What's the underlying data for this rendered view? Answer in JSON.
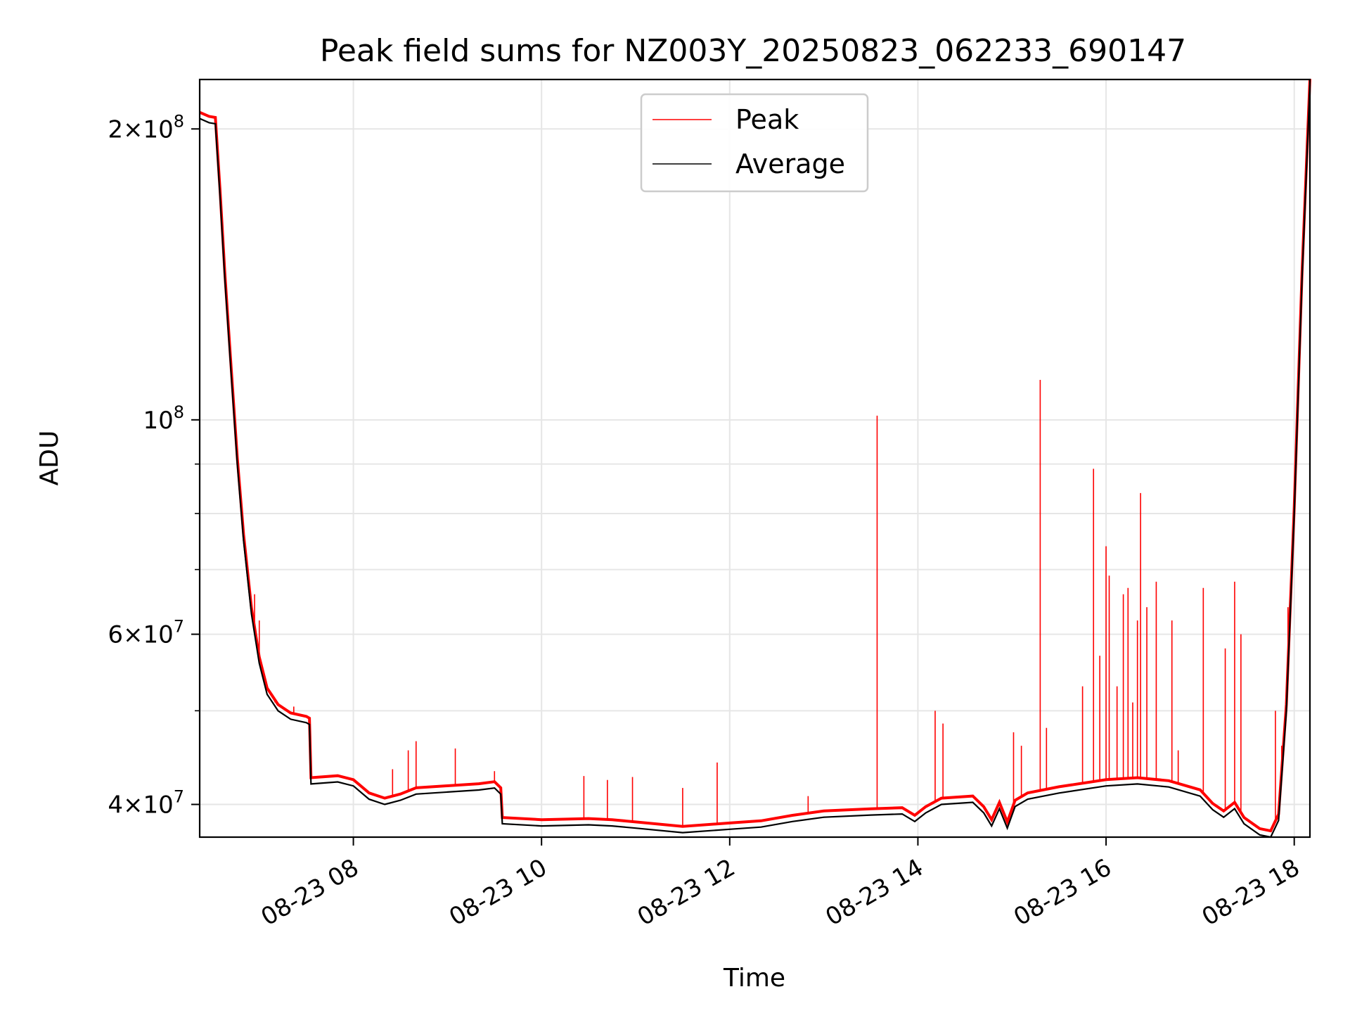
{
  "chart_data": {
    "type": "line",
    "title": "Peak field sums for NZ003Y_20250823_062233_690147",
    "xlabel": "Time",
    "ylabel": "ADU",
    "yscale": "log",
    "grid": true,
    "legend_placement": "top-center",
    "x_range": [
      "2025-08-23 06:22",
      "2025-08-23 18:10"
    ],
    "ylim": [
      37000000,
      225000000
    ],
    "x_ticks": [
      {
        "value": "2025-08-23 08:00",
        "label": "08-23 08"
      },
      {
        "value": "2025-08-23 10:00",
        "label": "08-23 10"
      },
      {
        "value": "2025-08-23 12:00",
        "label": "08-23 12"
      },
      {
        "value": "2025-08-23 14:00",
        "label": "08-23 14"
      },
      {
        "value": "2025-08-23 16:00",
        "label": "08-23 16"
      },
      {
        "value": "2025-08-23 18:00",
        "label": "08-23 18"
      }
    ],
    "y_major_ticks": [
      {
        "value": 40000000,
        "mantissa": "4",
        "exponent": "7"
      },
      {
        "value": 60000000,
        "mantissa": "6",
        "exponent": "7"
      },
      {
        "value": 100000000,
        "mantissa": "",
        "exponent": "8"
      },
      {
        "value": 200000000,
        "mantissa": "2",
        "exponent": "8"
      }
    ],
    "y_minor_ticks": [
      50000000,
      70000000,
      80000000,
      90000000
    ],
    "series": [
      {
        "name": "Average",
        "color": "#000000",
        "points": [
          [
            "2025-08-23 06:22",
            205000000
          ],
          [
            "2025-08-23 06:28",
            203000000
          ],
          [
            "2025-08-23 06:32",
            202500000
          ],
          [
            "2025-08-23 06:35",
            170000000
          ],
          [
            "2025-08-23 06:38",
            140000000
          ],
          [
            "2025-08-23 06:42",
            112000000
          ],
          [
            "2025-08-23 06:46",
            90000000
          ],
          [
            "2025-08-23 06:50",
            75000000
          ],
          [
            "2025-08-23 06:55",
            63000000
          ],
          [
            "2025-08-23 07:00",
            56000000
          ],
          [
            "2025-08-23 07:05",
            52000000
          ],
          [
            "2025-08-23 07:12",
            50000000
          ],
          [
            "2025-08-23 07:20",
            49000000
          ],
          [
            "2025-08-23 07:30",
            48600000
          ],
          [
            "2025-08-23 07:32",
            48400000
          ],
          [
            "2025-08-23 07:33",
            42000000
          ],
          [
            "2025-08-23 07:50",
            42200000
          ],
          [
            "2025-08-23 08:00",
            41800000
          ],
          [
            "2025-08-23 08:10",
            40500000
          ],
          [
            "2025-08-23 08:20",
            40000000
          ],
          [
            "2025-08-23 08:30",
            40400000
          ],
          [
            "2025-08-23 08:40",
            41000000
          ],
          [
            "2025-08-23 09:00",
            41200000
          ],
          [
            "2025-08-23 09:20",
            41400000
          ],
          [
            "2025-08-23 09:30",
            41600000
          ],
          [
            "2025-08-23 09:34",
            41000000
          ],
          [
            "2025-08-23 09:35",
            38200000
          ],
          [
            "2025-08-23 10:00",
            38000000
          ],
          [
            "2025-08-23 10:30",
            38100000
          ],
          [
            "2025-08-23 10:45",
            38000000
          ],
          [
            "2025-08-23 11:00",
            37800000
          ],
          [
            "2025-08-23 11:30",
            37400000
          ],
          [
            "2025-08-23 12:00",
            37700000
          ],
          [
            "2025-08-23 12:20",
            37900000
          ],
          [
            "2025-08-23 12:40",
            38400000
          ],
          [
            "2025-08-23 13:00",
            38800000
          ],
          [
            "2025-08-23 13:30",
            39000000
          ],
          [
            "2025-08-23 13:50",
            39100000
          ],
          [
            "2025-08-23 13:58",
            38400000
          ],
          [
            "2025-08-23 14:05",
            39200000
          ],
          [
            "2025-08-23 14:15",
            40000000
          ],
          [
            "2025-08-23 14:35",
            40200000
          ],
          [
            "2025-08-23 14:42",
            39200000
          ],
          [
            "2025-08-23 14:47",
            38000000
          ],
          [
            "2025-08-23 14:52",
            39600000
          ],
          [
            "2025-08-23 14:57",
            37800000
          ],
          [
            "2025-08-23 15:02",
            39800000
          ],
          [
            "2025-08-23 15:10",
            40500000
          ],
          [
            "2025-08-23 15:30",
            41100000
          ],
          [
            "2025-08-23 16:00",
            41800000
          ],
          [
            "2025-08-23 16:20",
            42000000
          ],
          [
            "2025-08-23 16:40",
            41700000
          ],
          [
            "2025-08-23 17:00",
            40800000
          ],
          [
            "2025-08-23 17:08",
            39500000
          ],
          [
            "2025-08-23 17:15",
            38800000
          ],
          [
            "2025-08-23 17:22",
            39600000
          ],
          [
            "2025-08-23 17:28",
            38200000
          ],
          [
            "2025-08-23 17:38",
            37200000
          ],
          [
            "2025-08-23 17:45",
            37000000
          ],
          [
            "2025-08-23 17:50",
            38500000
          ],
          [
            "2025-08-23 17:55",
            50000000
          ],
          [
            "2025-08-23 18:00",
            80000000
          ],
          [
            "2025-08-23 18:05",
            140000000
          ],
          [
            "2025-08-23 18:10",
            222000000
          ]
        ]
      },
      {
        "name": "Peak",
        "color": "#ff0000",
        "spikes": [
          [
            "2025-08-23 06:57",
            66000000
          ],
          [
            "2025-08-23 07:00",
            62000000
          ],
          [
            "2025-08-23 07:10",
            51000000
          ],
          [
            "2025-08-23 07:22",
            50500000
          ],
          [
            "2025-08-23 08:25",
            43500000
          ],
          [
            "2025-08-23 08:35",
            45500000
          ],
          [
            "2025-08-23 08:40",
            46500000
          ],
          [
            "2025-08-23 09:05",
            45700000
          ],
          [
            "2025-08-23 09:30",
            43300000
          ],
          [
            "2025-08-23 10:27",
            42800000
          ],
          [
            "2025-08-23 10:42",
            42400000
          ],
          [
            "2025-08-23 10:58",
            42700000
          ],
          [
            "2025-08-23 11:30",
            41600000
          ],
          [
            "2025-08-23 11:52",
            44200000
          ],
          [
            "2025-08-23 12:50",
            40800000
          ],
          [
            "2025-08-23 13:34",
            101000000
          ],
          [
            "2025-08-23 14:11",
            50000000
          ],
          [
            "2025-08-23 14:16",
            48500000
          ],
          [
            "2025-08-23 15:01",
            47500000
          ],
          [
            "2025-08-23 15:06",
            46000000
          ],
          [
            "2025-08-23 15:18",
            110000000
          ],
          [
            "2025-08-23 15:22",
            48000000
          ],
          [
            "2025-08-23 15:45",
            53000000
          ],
          [
            "2025-08-23 15:52",
            89000000
          ],
          [
            "2025-08-23 15:56",
            57000000
          ],
          [
            "2025-08-23 16:00",
            74000000
          ],
          [
            "2025-08-23 16:02",
            69000000
          ],
          [
            "2025-08-23 16:07",
            53000000
          ],
          [
            "2025-08-23 16:11",
            66000000
          ],
          [
            "2025-08-23 16:14",
            67000000
          ],
          [
            "2025-08-23 16:17",
            51000000
          ],
          [
            "2025-08-23 16:20",
            62000000
          ],
          [
            "2025-08-23 16:22",
            84000000
          ],
          [
            "2025-08-23 16:26",
            64000000
          ],
          [
            "2025-08-23 16:32",
            68000000
          ],
          [
            "2025-08-23 16:42",
            62000000
          ],
          [
            "2025-08-23 16:46",
            45500000
          ],
          [
            "2025-08-23 17:02",
            67000000
          ],
          [
            "2025-08-23 17:16",
            58000000
          ],
          [
            "2025-08-23 17:22",
            68000000
          ],
          [
            "2025-08-23 17:26",
            60000000
          ],
          [
            "2025-08-23 17:48",
            50000000
          ],
          [
            "2025-08-23 17:52",
            46000000
          ],
          [
            "2025-08-23 17:56",
            64000000
          ]
        ]
      }
    ]
  }
}
